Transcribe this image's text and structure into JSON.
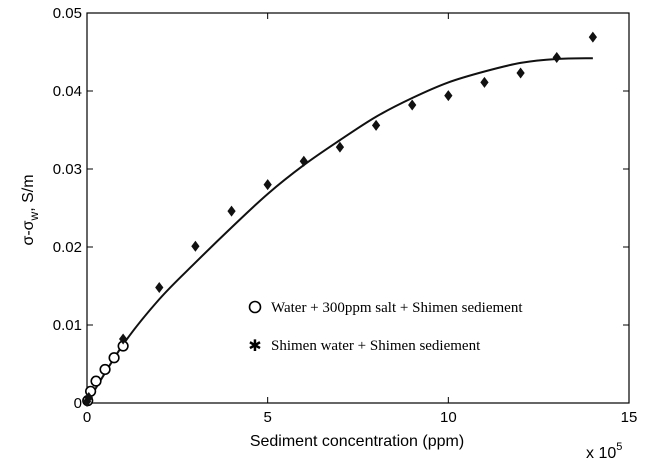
{
  "chart_data": {
    "type": "scatter",
    "xlabel": "Sediment concentration (ppm)",
    "ylabel": "σ-σw, S/m",
    "ylabel_main": "σ-σ",
    "ylabel_sub": "w",
    "ylabel_tail": ", S/m",
    "x_multiplier_label": "x 10",
    "x_multiplier_exp": "5",
    "xlim": [
      0,
      15
    ],
    "ylim": [
      0,
      0.05
    ],
    "x_ticks": [
      0,
      5,
      10,
      15
    ],
    "x_tick_labels": [
      "0",
      "5",
      "10",
      "15"
    ],
    "y_ticks": [
      0,
      0.01,
      0.02,
      0.03,
      0.04,
      0.05
    ],
    "y_tick_labels": [
      "0",
      "0.01",
      "0.02",
      "0.03",
      "0.04",
      "0.05"
    ],
    "legend_position": "lower-right",
    "series": [
      {
        "name": "Water + 300ppm salt + Shimen sediement",
        "marker": "circle",
        "x": [
          0.02,
          0.1,
          0.25,
          0.5,
          0.75,
          1.0
        ],
        "y": [
          0.0003,
          0.0015,
          0.0028,
          0.0043,
          0.0058,
          0.0073
        ]
      },
      {
        "name": "Shimen water + Shimen sediement",
        "marker": "star",
        "x": [
          0,
          0.05,
          1.0,
          2.0,
          3.0,
          4.0,
          5.0,
          6.0,
          7.0,
          8.0,
          9.0,
          10.0,
          11.0,
          12.0,
          13.0,
          14.0
        ],
        "y": [
          0.0002,
          0.0007,
          0.0082,
          0.0148,
          0.0201,
          0.0246,
          0.028,
          0.031,
          0.0328,
          0.0356,
          0.0382,
          0.0394,
          0.0411,
          0.0423,
          0.0443,
          0.0469
        ]
      }
    ],
    "fit_curve": {
      "x": [
        0,
        1,
        2,
        3,
        4,
        5,
        6,
        7,
        8,
        9,
        10,
        11,
        12,
        13,
        14
      ],
      "y": [
        0,
        0.0075,
        0.0133,
        0.018,
        0.0225,
        0.0268,
        0.0305,
        0.0337,
        0.0367,
        0.0391,
        0.0411,
        0.0425,
        0.0436,
        0.0441,
        0.0442
      ]
    }
  }
}
